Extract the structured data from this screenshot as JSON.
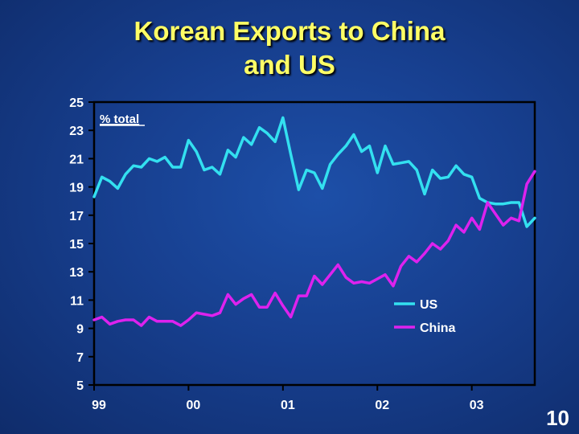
{
  "slide": {
    "title_line1": "Korean Exports to China",
    "title_line2": "and US",
    "page_number": "10"
  },
  "colors": {
    "title": "#ffff66",
    "us": "#33e0f0",
    "china": "#dd22ee",
    "text": "#ffffff",
    "axis": "#000000"
  },
  "chart_data": {
    "type": "line",
    "title": "Korean Exports to China and US",
    "ylabel": "% total",
    "ylim": [
      5,
      25
    ],
    "yticks": [
      5,
      7,
      9,
      11,
      13,
      15,
      17,
      19,
      21,
      23,
      25
    ],
    "xlim": [
      1999.0,
      2003.667
    ],
    "xticks": [
      {
        "value": 1999,
        "label": "99"
      },
      {
        "value": 2000,
        "label": "00"
      },
      {
        "value": 2001,
        "label": "01"
      },
      {
        "value": 2002,
        "label": "02"
      },
      {
        "value": 2003,
        "label": "03"
      }
    ],
    "grid": false,
    "legend_position": "lower-right",
    "x": [
      1999.0,
      1999.083,
      1999.167,
      1999.25,
      1999.333,
      1999.417,
      1999.5,
      1999.583,
      1999.667,
      1999.75,
      1999.833,
      1999.917,
      2000.0,
      2000.083,
      2000.167,
      2000.25,
      2000.333,
      2000.417,
      2000.5,
      2000.583,
      2000.667,
      2000.75,
      2000.833,
      2000.917,
      2001.0,
      2001.083,
      2001.167,
      2001.25,
      2001.333,
      2001.417,
      2001.5,
      2001.583,
      2001.667,
      2001.75,
      2001.833,
      2001.917,
      2002.0,
      2002.083,
      2002.167,
      2002.25,
      2002.333,
      2002.417,
      2002.5,
      2002.583,
      2002.667,
      2002.75,
      2002.833,
      2002.917,
      2003.0,
      2003.083,
      2003.167,
      2003.25,
      2003.333,
      2003.417,
      2003.5,
      2003.583,
      2003.667
    ],
    "series": [
      {
        "name": "US",
        "color": "#33e0f0",
        "values": [
          18.3,
          19.7,
          19.4,
          18.9,
          19.9,
          20.5,
          20.4,
          21.0,
          20.8,
          21.1,
          20.4,
          20.4,
          22.3,
          21.5,
          20.2,
          20.4,
          19.9,
          21.6,
          21.1,
          22.5,
          22.0,
          23.2,
          22.8,
          22.2,
          23.9,
          21.3,
          18.8,
          20.2,
          20.0,
          18.9,
          20.6,
          21.3,
          21.9,
          22.7,
          21.5,
          21.9,
          20.0,
          21.9,
          20.6,
          20.7,
          20.8,
          20.2,
          18.5,
          20.2,
          19.6,
          19.7,
          20.5,
          19.9,
          19.7,
          18.2,
          17.9,
          17.8,
          17.8,
          17.9,
          17.9,
          16.2,
          16.8
        ]
      },
      {
        "name": "China",
        "color": "#dd22ee",
        "values": [
          9.6,
          9.8,
          9.3,
          9.5,
          9.6,
          9.6,
          9.2,
          9.8,
          9.5,
          9.5,
          9.5,
          9.2,
          9.6,
          10.1,
          10.0,
          9.9,
          10.1,
          11.4,
          10.7,
          11.1,
          11.4,
          10.5,
          10.5,
          11.5,
          10.6,
          9.8,
          11.3,
          11.3,
          12.7,
          12.1,
          12.8,
          13.5,
          12.6,
          12.2,
          12.3,
          12.2,
          12.5,
          12.8,
          12.0,
          13.4,
          14.1,
          13.7,
          14.3,
          15.0,
          14.6,
          15.2,
          16.3,
          15.8,
          16.8,
          16.0,
          17.9,
          17.1,
          16.3,
          16.8,
          16.6,
          19.2,
          20.1
        ]
      }
    ]
  }
}
